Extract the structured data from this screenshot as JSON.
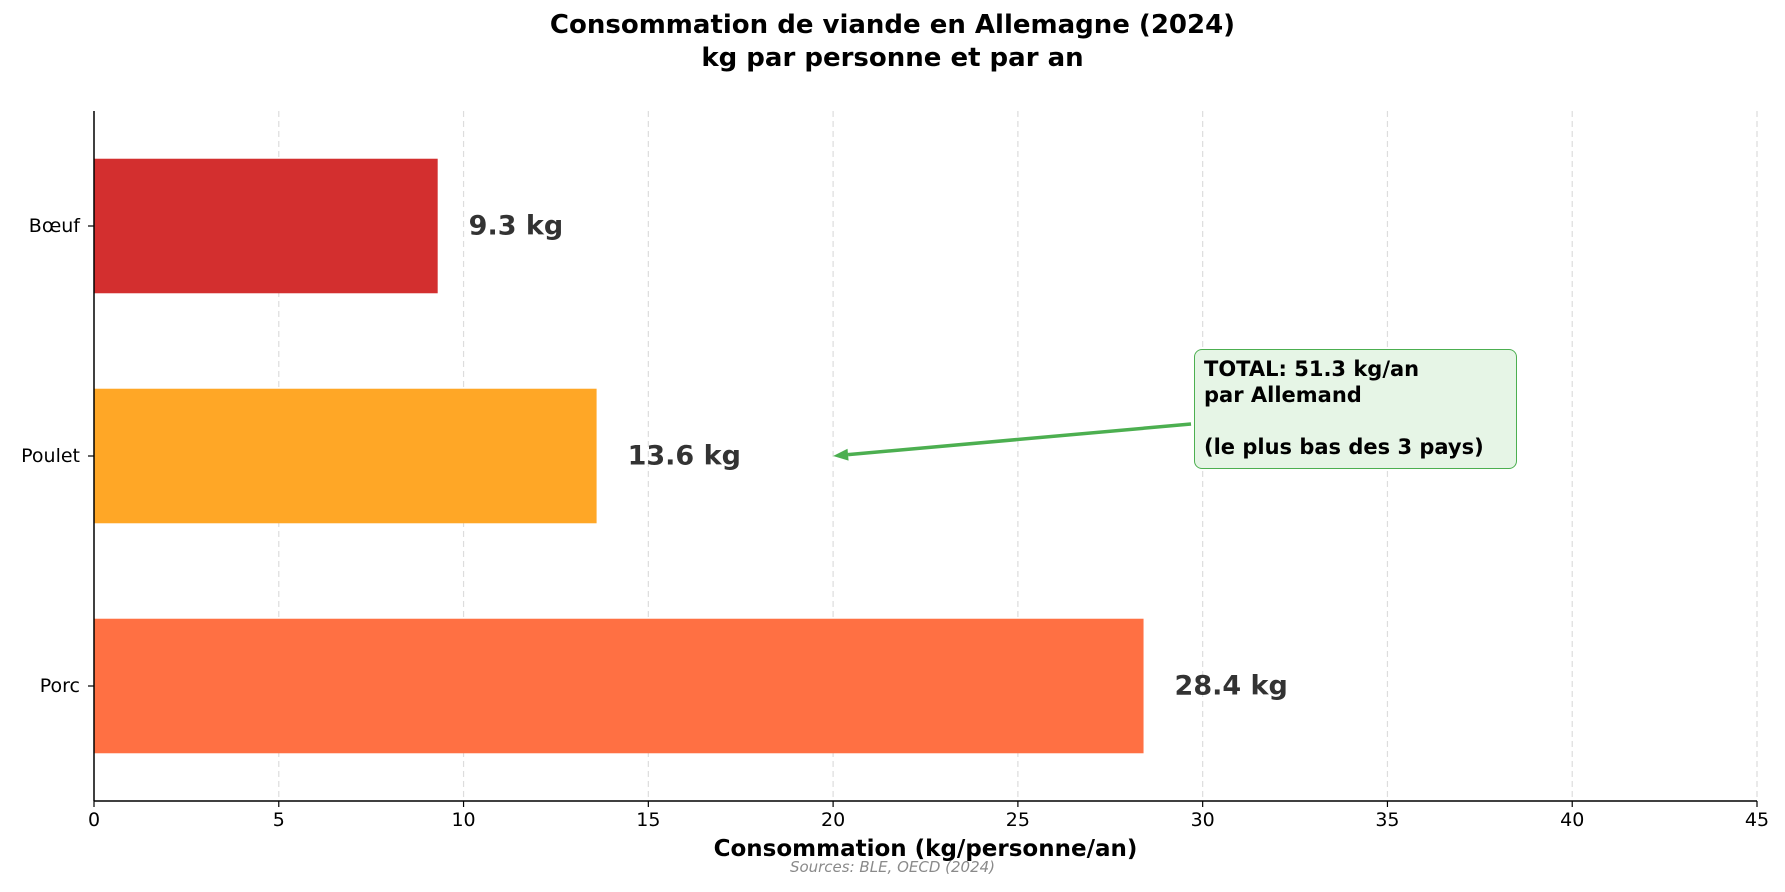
{
  "chart_data": {
    "type": "bar",
    "orientation": "horizontal",
    "title": "Consommation de viande en Allemagne (2024)",
    "subtitle": "kg par personne et par an",
    "xlabel": "Consommation (kg/personne/an)",
    "ylabel": "",
    "xlim": [
      0,
      45
    ],
    "xticks": [
      0,
      5,
      10,
      15,
      20,
      25,
      30,
      35,
      40,
      45
    ],
    "grid": "vertical dashed",
    "categories": [
      "Bœuf",
      "Poulet",
      "Porc"
    ],
    "values": [
      9.3,
      13.6,
      28.4
    ],
    "value_labels": [
      "9.3 kg",
      "13.6 kg",
      "28.4 kg"
    ],
    "colors": [
      "#d32f2f",
      "#ffa726",
      "#ff7043"
    ],
    "annotation": {
      "lines": [
        "TOTAL: 51.3 kg/an",
        "par Allemand",
        "",
        "(le plus bas des 3 pays)"
      ],
      "arrow_target": {
        "x": 20,
        "category": "Poulet"
      },
      "color": "#4caf50",
      "fill": "#e6f5e6"
    },
    "source": "Sources: BLE, OECD (2024)"
  }
}
